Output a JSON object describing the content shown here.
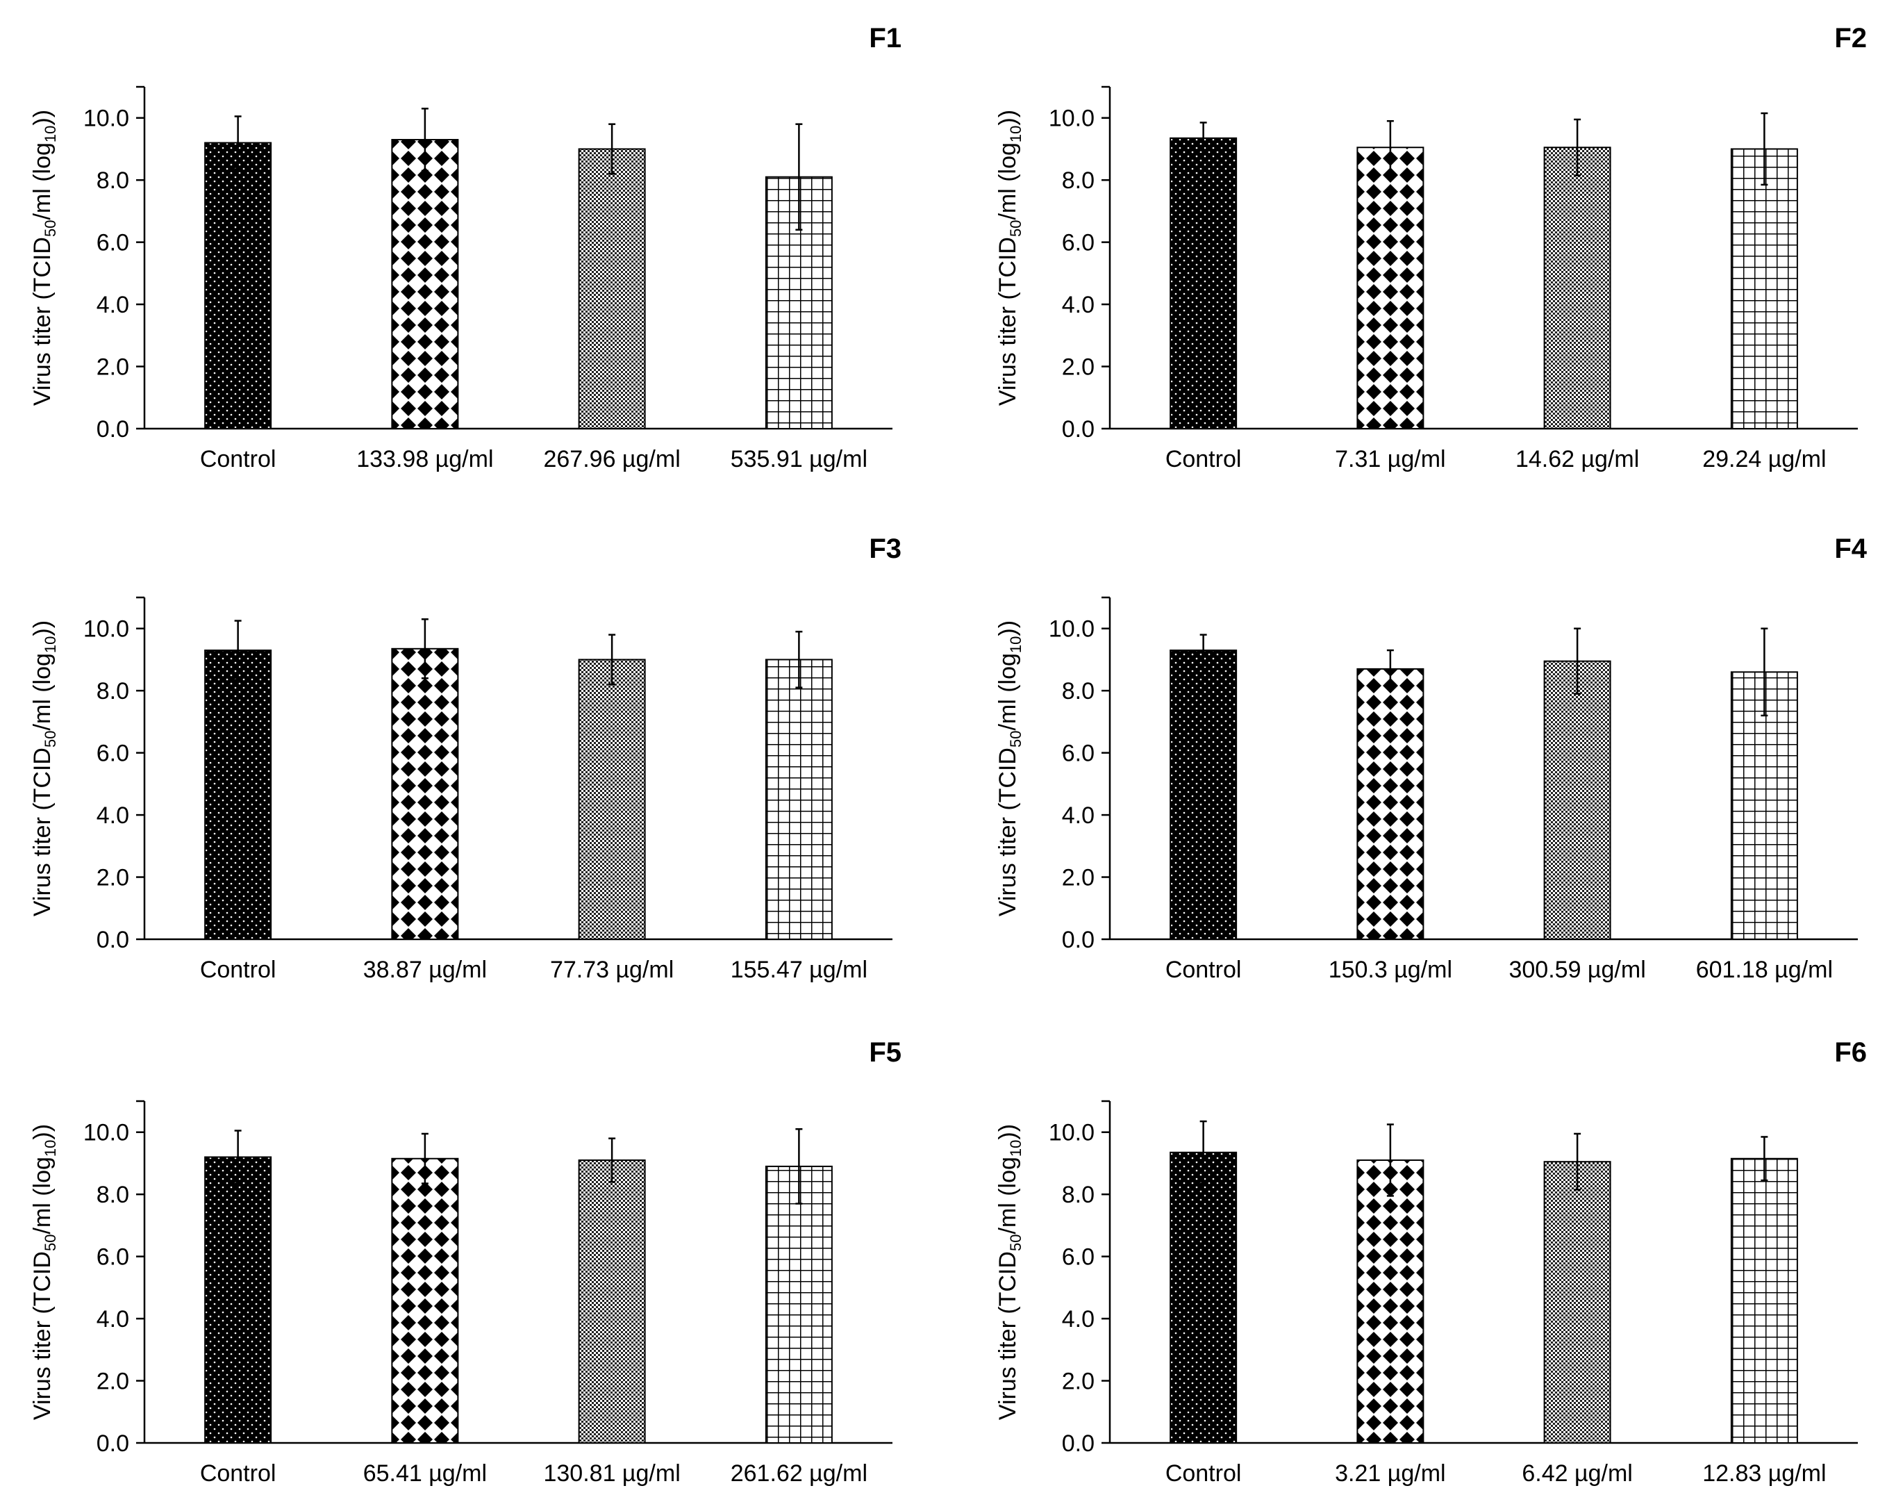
{
  "figure": {
    "ylabel_text": {
      "prefix": "Virus titer (TCID",
      "sub1": "50",
      "middle": "/ml (log",
      "sub2": "10",
      "suffix": "))"
    }
  },
  "chart_data": [
    {
      "type": "bar",
      "title": "F1",
      "xlabel": "",
      "ylabel": "Virus titer (TCID50/ml (log10))",
      "ylim": [
        0,
        11
      ],
      "yticks": [
        "0.0",
        "2.0",
        "4.0",
        "6.0",
        "8.0",
        "10.0"
      ],
      "categories": [
        "Control",
        "133.98 µg/ml",
        "267.96 µg/ml",
        "535.91 µg/ml"
      ],
      "values": [
        9.2,
        9.3,
        9.0,
        8.1
      ],
      "errors": [
        0.85,
        1.0,
        0.8,
        1.7
      ],
      "patterns": [
        "dots",
        "diamonds",
        "fine",
        "grid"
      ]
    },
    {
      "type": "bar",
      "title": "F2",
      "xlabel": "",
      "ylabel": "Virus titer (TCID50/ml (log10))",
      "ylim": [
        0,
        11
      ],
      "yticks": [
        "0.0",
        "2.0",
        "4.0",
        "6.0",
        "8.0",
        "10.0"
      ],
      "categories": [
        "Control",
        "7.31 µg/ml",
        "14.62 µg/ml",
        "29.24 µg/ml"
      ],
      "values": [
        9.35,
        9.05,
        9.05,
        9.0
      ],
      "errors": [
        0.5,
        0.85,
        0.9,
        1.15
      ],
      "patterns": [
        "dots",
        "diamonds",
        "fine",
        "grid"
      ]
    },
    {
      "type": "bar",
      "title": "F3",
      "xlabel": "",
      "ylabel": "Virus titer (TCID50/ml (log10))",
      "ylim": [
        0,
        11
      ],
      "yticks": [
        "0.0",
        "2.0",
        "4.0",
        "6.0",
        "8.0",
        "10.0"
      ],
      "categories": [
        "Control",
        "38.87 µg/ml",
        "77.73 µg/ml",
        "155.47 µg/ml"
      ],
      "values": [
        9.3,
        9.35,
        9.0,
        9.0
      ],
      "errors": [
        0.95,
        0.95,
        0.8,
        0.9
      ],
      "patterns": [
        "dots",
        "diamonds",
        "fine",
        "grid"
      ]
    },
    {
      "type": "bar",
      "title": "F4",
      "xlabel": "",
      "ylabel": "Virus titer (TCID50/ml (log10))",
      "ylim": [
        0,
        11
      ],
      "yticks": [
        "0.0",
        "2.0",
        "4.0",
        "6.0",
        "8.0",
        "10.0"
      ],
      "categories": [
        "Control",
        "150.3 µg/ml",
        "300.59 µg/ml",
        "601.18 µg/ml"
      ],
      "values": [
        9.3,
        8.7,
        8.95,
        8.6
      ],
      "errors": [
        0.5,
        0.6,
        1.05,
        1.4
      ],
      "patterns": [
        "dots",
        "diamonds",
        "fine",
        "grid"
      ]
    },
    {
      "type": "bar",
      "title": "F5",
      "xlabel": "",
      "ylabel": "Virus titer (TCID50/ml (log10))",
      "ylim": [
        0,
        11
      ],
      "yticks": [
        "0.0",
        "2.0",
        "4.0",
        "6.0",
        "8.0",
        "10.0"
      ],
      "categories": [
        "Control",
        "65.41 µg/ml",
        "130.81 µg/ml",
        "261.62 µg/ml"
      ],
      "values": [
        9.2,
        9.15,
        9.1,
        8.9
      ],
      "errors": [
        0.85,
        0.8,
        0.7,
        1.2
      ],
      "patterns": [
        "dots",
        "diamonds",
        "fine",
        "grid"
      ]
    },
    {
      "type": "bar",
      "title": "F6",
      "xlabel": "",
      "ylabel": "Virus titer (TCID50/ml (log10))",
      "ylim": [
        0,
        11
      ],
      "yticks": [
        "0.0",
        "2.0",
        "4.0",
        "6.0",
        "8.0",
        "10.0"
      ],
      "categories": [
        "Control",
        "3.21 µg/ml",
        "6.42 µg/ml",
        "12.83 µg/ml"
      ],
      "values": [
        9.35,
        9.1,
        9.05,
        9.15
      ],
      "errors": [
        1.0,
        1.15,
        0.9,
        0.7
      ],
      "patterns": [
        "dots",
        "diamonds",
        "fine",
        "grid"
      ]
    }
  ]
}
